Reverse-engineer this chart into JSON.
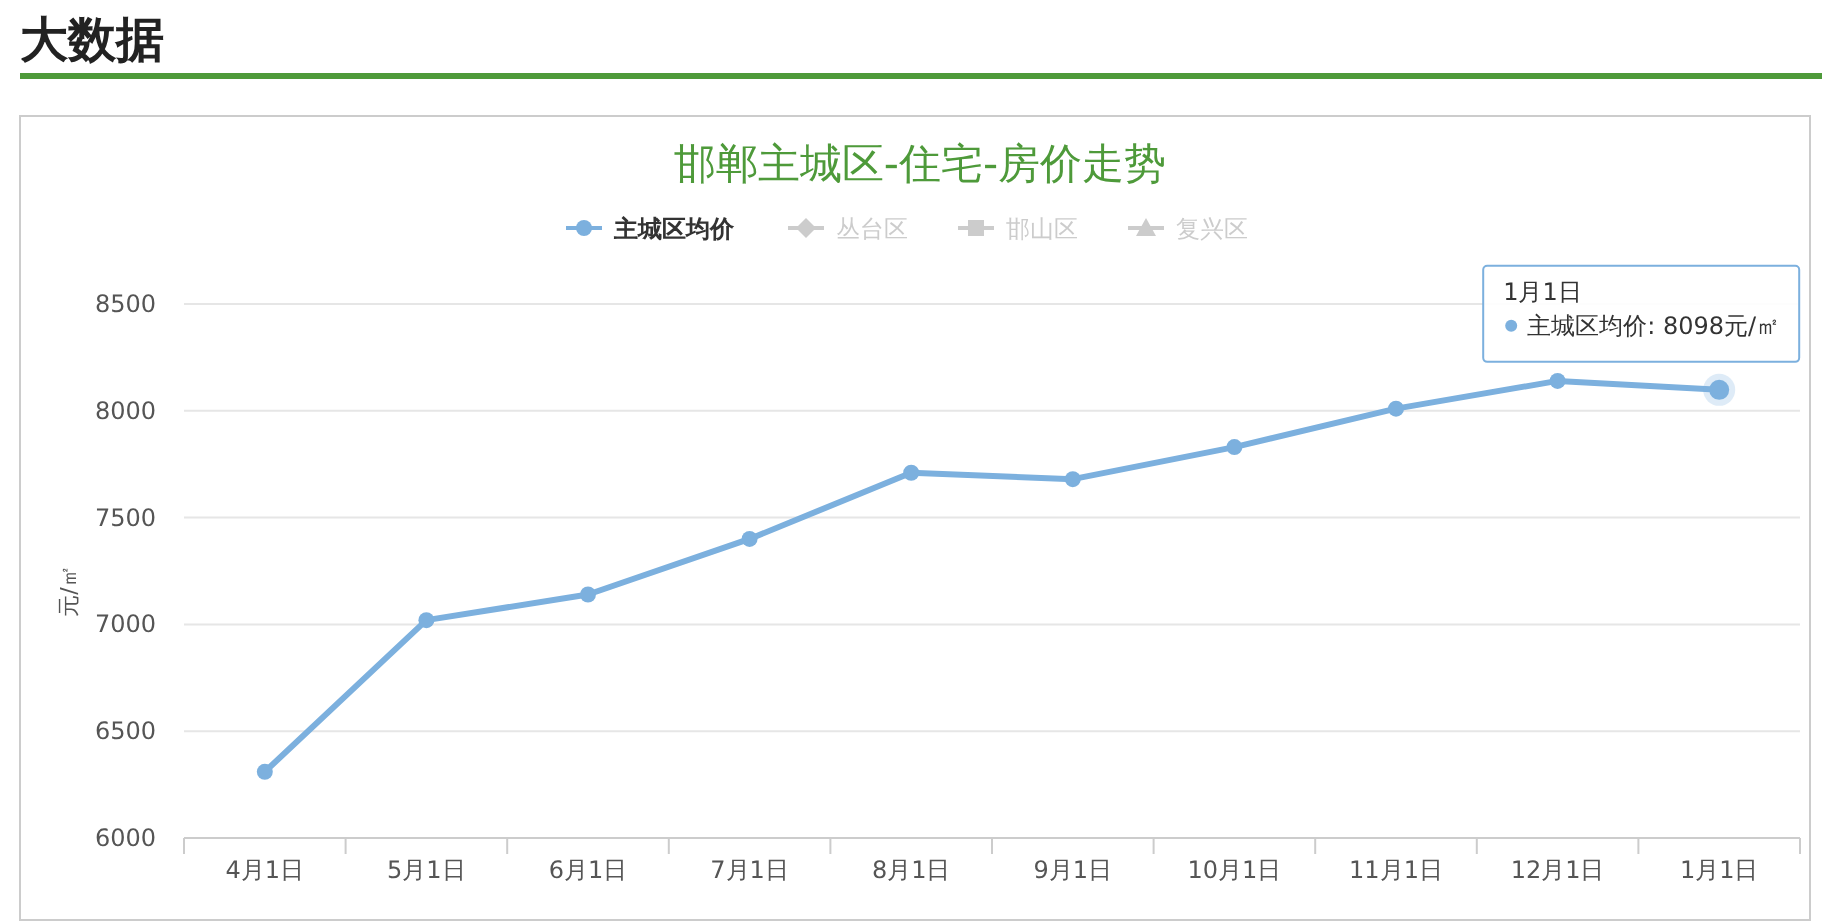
{
  "chart_data": {
    "type": "line",
    "title": "邯郸主城区-住宅-房价走势",
    "ylabel": "元/㎡",
    "annotations": [
      "大数据",
      "1月1日",
      {
        "text": "主城区均价: 8098元/㎡",
        "x": "1月1日",
        "y": 8098
      }
    ],
    "categories": [
      "4月1日",
      "5月1日",
      "6月1日",
      "7月1日",
      "8月1日",
      "9月1日",
      "10月1日",
      "11月1日",
      "12月1日",
      "1月1日"
    ],
    "series": [
      {
        "name": "主城区均价",
        "color": "#7cb0de",
        "marker": "circle",
        "values": [
          6310,
          7020,
          7140,
          7400,
          7710,
          7680,
          7830,
          8010,
          8140,
          8098
        ]
      },
      {
        "name": "丛台区",
        "color": "#cccccc",
        "marker": "diamond",
        "values": [
          null,
          null,
          null,
          null,
          null,
          null,
          null,
          null,
          null,
          null
        ]
      },
      {
        "name": "邯山区",
        "color": "#cccccc",
        "marker": "square",
        "values": [
          null,
          null,
          null,
          null,
          null,
          null,
          null,
          null,
          null,
          null
        ]
      },
      {
        "name": "复兴区",
        "color": "#cccccc",
        "marker": "triangle",
        "values": [
          null,
          null,
          null,
          null,
          null,
          null,
          null,
          null,
          null,
          null
        ]
      }
    ],
    "ylim": [
      6000,
      8500
    ],
    "yticks": [
      6000,
      6500,
      7000,
      7500,
      8000,
      8500
    ],
    "grid": "y",
    "legend": "top",
    "line_style": "solid"
  }
}
